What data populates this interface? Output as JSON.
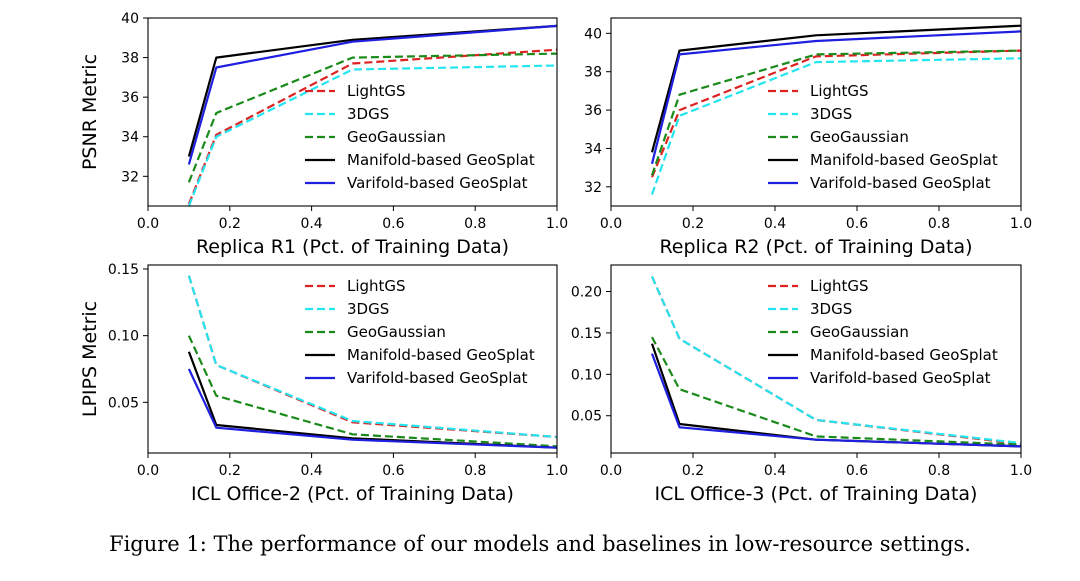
{
  "caption": "Figure 1: The performance of our models and baselines in low-resource settings.",
  "colors": {
    "LightGS": "#dd2222",
    "3DGS": "#22e5f0",
    "GeoGaussian": "#1a8a1a",
    "Manifold-based GeoSplat": "#000000",
    "Varifold-based GeoSplat": "#1f1fe0"
  },
  "chart_data": [
    {
      "type": "line",
      "ylabel": "PSNR Metric",
      "xlabel": "Replica R1 (Pct. of Training Data)",
      "xlim": [
        0.0,
        1.0
      ],
      "ylim": [
        30.5,
        40.0
      ],
      "xticks": [
        "0.0",
        "0.2",
        "0.4",
        "0.6",
        "0.8",
        "1.0"
      ],
      "yticks": [
        "32",
        "34",
        "36",
        "38",
        "40"
      ],
      "x": [
        0.1,
        0.167,
        0.5,
        1.0
      ],
      "series": [
        {
          "name": "LightGS",
          "style": "dashed",
          "values": [
            30.6,
            34.1,
            37.7,
            38.4
          ]
        },
        {
          "name": "3DGS",
          "style": "dashed",
          "values": [
            30.5,
            34.0,
            37.4,
            37.6
          ]
        },
        {
          "name": "GeoGaussian",
          "style": "dashed",
          "values": [
            31.7,
            35.2,
            38.0,
            38.2
          ]
        },
        {
          "name": "Manifold-based GeoSplat",
          "style": "solid",
          "values": [
            33.0,
            38.0,
            38.9,
            39.6
          ]
        },
        {
          "name": "Varifold-based GeoSplat",
          "style": "solid",
          "values": [
            32.6,
            37.5,
            38.8,
            39.6
          ]
        }
      ]
    },
    {
      "type": "line",
      "ylabel": "",
      "xlabel": "Replica R2 (Pct. of Training Data)",
      "xlim": [
        0.0,
        1.0
      ],
      "ylim": [
        31.0,
        40.8
      ],
      "xticks": [
        "0.0",
        "0.2",
        "0.4",
        "0.6",
        "0.8",
        "1.0"
      ],
      "yticks": [
        "32",
        "34",
        "36",
        "38",
        "40"
      ],
      "x": [
        0.1,
        0.167,
        0.5,
        1.0
      ],
      "series": [
        {
          "name": "LightGS",
          "style": "dashed",
          "values": [
            32.5,
            36.0,
            38.8,
            39.1
          ]
        },
        {
          "name": "3DGS",
          "style": "dashed",
          "values": [
            31.6,
            35.7,
            38.5,
            38.7
          ]
        },
        {
          "name": "GeoGaussian",
          "style": "dashed",
          "values": [
            32.6,
            36.8,
            38.9,
            39.1
          ]
        },
        {
          "name": "Manifold-based GeoSplat",
          "style": "solid",
          "values": [
            33.8,
            39.1,
            39.9,
            40.4
          ]
        },
        {
          "name": "Varifold-based GeoSplat",
          "style": "solid",
          "values": [
            33.2,
            38.9,
            39.6,
            40.1
          ]
        }
      ]
    },
    {
      "type": "line",
      "ylabel": "LPIPS Metric",
      "xlabel": "ICL Office-2 (Pct. of Training Data)",
      "xlim": [
        0.0,
        1.0
      ],
      "ylim": [
        0.012,
        0.153
      ],
      "xticks": [
        "0.0",
        "0.2",
        "0.4",
        "0.6",
        "0.8",
        "1.0"
      ],
      "yticks": [
        "0.05",
        "0.10",
        "0.15"
      ],
      "x": [
        0.1,
        0.167,
        0.5,
        1.0
      ],
      "series": [
        {
          "name": "LightGS",
          "style": "dashed",
          "values": [
            0.145,
            0.078,
            0.035,
            0.024
          ]
        },
        {
          "name": "3DGS",
          "style": "dashed",
          "values": [
            0.145,
            0.078,
            0.036,
            0.024
          ]
        },
        {
          "name": "GeoGaussian",
          "style": "dashed",
          "values": [
            0.1,
            0.055,
            0.026,
            0.017
          ]
        },
        {
          "name": "Manifold-based GeoSplat",
          "style": "solid",
          "values": [
            0.088,
            0.033,
            0.023,
            0.016
          ]
        },
        {
          "name": "Varifold-based GeoSplat",
          "style": "solid",
          "values": [
            0.075,
            0.031,
            0.022,
            0.016
          ]
        }
      ]
    },
    {
      "type": "line",
      "ylabel": "",
      "xlabel": "ICL Office-3 (Pct. of Training Data)",
      "xlim": [
        0.0,
        1.0
      ],
      "ylim": [
        0.005,
        0.232
      ],
      "xticks": [
        "0.0",
        "0.2",
        "0.4",
        "0.6",
        "0.8",
        "1.0"
      ],
      "yticks": [
        "0.05",
        "0.10",
        "0.15",
        "0.20"
      ],
      "x": [
        0.1,
        0.167,
        0.5,
        1.0
      ],
      "series": [
        {
          "name": "LightGS",
          "style": "dashed",
          "values": [
            0.218,
            0.143,
            0.045,
            0.016
          ]
        },
        {
          "name": "3DGS",
          "style": "dashed",
          "values": [
            0.218,
            0.143,
            0.045,
            0.017
          ]
        },
        {
          "name": "GeoGaussian",
          "style": "dashed",
          "values": [
            0.145,
            0.082,
            0.025,
            0.015
          ]
        },
        {
          "name": "Manifold-based GeoSplat",
          "style": "solid",
          "values": [
            0.137,
            0.04,
            0.021,
            0.013
          ]
        },
        {
          "name": "Varifold-based GeoSplat",
          "style": "solid",
          "values": [
            0.125,
            0.036,
            0.021,
            0.013
          ]
        }
      ]
    }
  ]
}
